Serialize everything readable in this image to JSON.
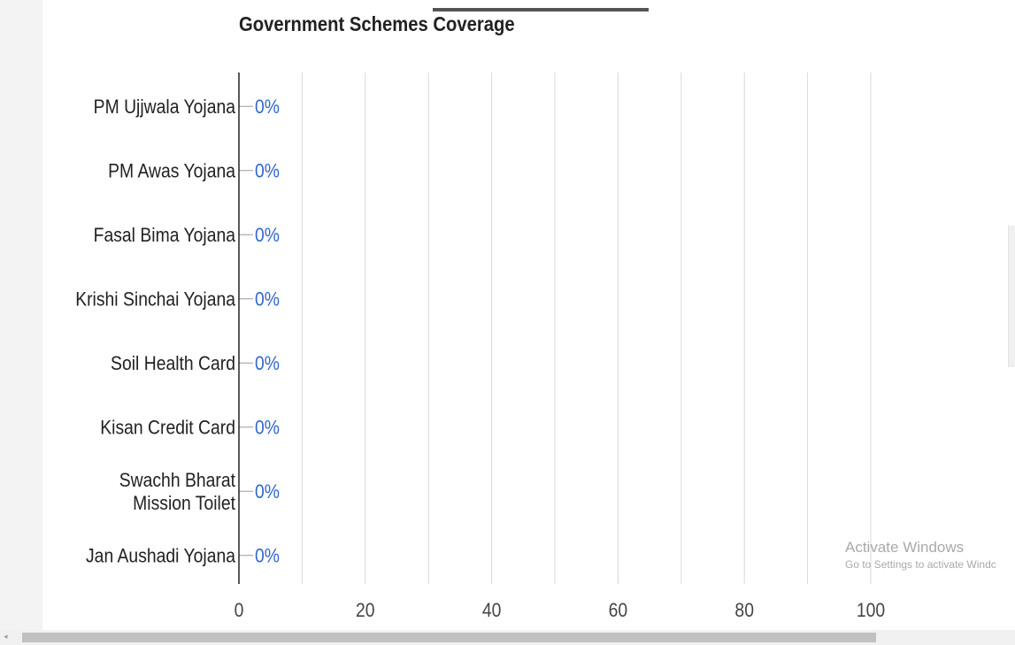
{
  "chart_data": {
    "type": "bar",
    "title": "Government Schemes Coverage",
    "categories": [
      [
        "PM Ujjwala Yojana"
      ],
      [
        "PM Awas Yojana"
      ],
      [
        "Fasal Bima Yojana"
      ],
      [
        "Krishi Sinchai Yojana"
      ],
      [
        "Soil Health Card"
      ],
      [
        "Kisan Credit Card"
      ],
      [
        "Swachh Bharat",
        "Mission Toilet"
      ],
      [
        "Jan Aushadi Yojana"
      ]
    ],
    "values": [
      0,
      0,
      0,
      0,
      0,
      0,
      0,
      0
    ],
    "value_labels": [
      "0%",
      "0%",
      "0%",
      "0%",
      "0%",
      "0%",
      "0%",
      "0%"
    ],
    "orientation": "horizontal",
    "xlim": [
      0,
      100
    ],
    "x_ticks": [
      "0",
      "20",
      "40",
      "60",
      "80",
      "100"
    ],
    "grid": true,
    "bar_color": "#3366cc",
    "label_color": "#3366cc",
    "axis_color": "#222222",
    "grid_color": "#d9d9d9"
  },
  "watermark": {
    "title": "Activate Windows",
    "subtitle": "Go to Settings to activate Windc"
  },
  "scrollbar": {
    "arrow": "◂"
  }
}
